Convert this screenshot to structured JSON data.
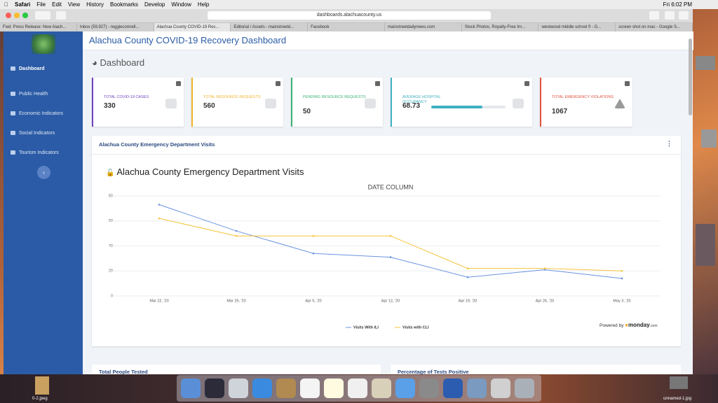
{
  "menubar": {
    "app": "Safari",
    "items": [
      "File",
      "Edit",
      "View",
      "History",
      "Bookmarks",
      "Develop",
      "Window",
      "Help"
    ],
    "clock": "Fri 6:02 PM"
  },
  "browser": {
    "url": "dashboards.alachuacounty.us",
    "tabs": [
      "Fwd: Press Release: New Alach...",
      "Inbox (59,927) - reggieconnell...",
      "Alachua County COVID-19 Rec...",
      "Editorial / Assets - mainstreetd...",
      "Facebook",
      "mainstreetdailynews.com",
      "Stock Photos, Royalty-Free Im...",
      "westwood middle school fl - G...",
      "screen shot on mac - Google S..."
    ]
  },
  "sidebar": {
    "items": [
      "Dashboard",
      "Public Health",
      "Economic Indicators",
      "Social Indicators",
      "Tourism Indicators"
    ]
  },
  "header": {
    "title": "Alachua County COVID-19 Recovery Dashboard"
  },
  "page_title": "Dashboard",
  "cards": [
    {
      "label": "TOTAL COVID-19 CASES",
      "value": 330,
      "color": "#6f42c1"
    },
    {
      "label": "TOTAL RESOURCE REQUESTS",
      "value": 560,
      "color": "#f0b429"
    },
    {
      "label": "PENDING RESOURCE REQUESTS",
      "value": 50,
      "color": "#3bb273"
    },
    {
      "label": "AVERAGE HOSPITAL OCCUPANCY",
      "value": 68.73,
      "color": "#3fb0c0"
    },
    {
      "label": "TOTAL EMERGENCY VIOLATIONS",
      "value": 1067,
      "color": "#e0533d"
    }
  ],
  "panel": {
    "title": "Alachua County Emergency Department Visits",
    "chart": {
      "type": "line",
      "heading": "Alachua County Emergency Department Visits",
      "title": "DATE COLUMN",
      "categories": [
        "Mar 22, '20",
        "Mar 29, '20",
        "Apr 5, '20",
        "Apr 12, '20",
        "Apr 19, '20",
        "Apr 26, '20",
        "May 3, '20"
      ],
      "series": [
        {
          "name": "Visits With ILI",
          "color": "#6b93e0",
          "values": [
            73,
            52,
            34,
            31,
            15,
            21,
            14
          ]
        },
        {
          "name": "Visits with CLI",
          "color": "#f5c33b",
          "values": [
            62,
            48,
            48,
            48,
            22,
            22,
            20
          ]
        }
      ],
      "ylim": [
        0,
        80
      ],
      "yticks": [
        0,
        20,
        40,
        60,
        80
      ],
      "grid": true,
      "credit": "Powered by",
      "brand": "monday",
      "brand_suffix": ".com"
    }
  },
  "lower_panels": [
    "Total People Tested",
    "Percentage of Tests Positive"
  ],
  "desktop": {
    "files": [
      "0-2.jpeg",
      "unnamed-1.jpg"
    ]
  }
}
